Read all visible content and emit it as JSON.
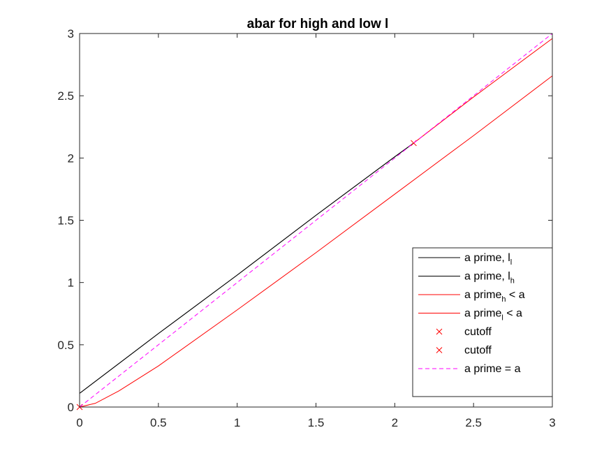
{
  "chart_data": {
    "type": "line",
    "title": "abar for high and low l",
    "xlabel": "",
    "ylabel": "",
    "xlim": [
      0,
      3
    ],
    "ylim": [
      0,
      3
    ],
    "xticks": [
      "0",
      "0.5",
      "1",
      "1.5",
      "2",
      "2.5",
      "3"
    ],
    "yticks": [
      "0",
      "0.5",
      "1",
      "1.5",
      "2",
      "2.5",
      "3"
    ],
    "grid": false,
    "legend_position": "bottom-right",
    "series": [
      {
        "name": "a prime, l_l",
        "legend": {
          "main": "a prime, l",
          "sub": "l",
          "suffix": ""
        },
        "color": "#000000",
        "style": "solid",
        "x": [
          0,
          0.5,
          1.0,
          1.5,
          2.0,
          2.12
        ],
        "y": [
          0.11,
          0.59,
          1.06,
          1.54,
          2.01,
          2.12
        ]
      },
      {
        "name": "a prime, l_h",
        "legend": {
          "main": "a prime, l",
          "sub": "h",
          "suffix": ""
        },
        "color": "#000000",
        "style": "solid",
        "x": [
          0,
          0.5,
          1.0,
          1.5,
          2.0,
          2.12
        ],
        "y": [
          0.11,
          0.59,
          1.06,
          1.54,
          2.01,
          2.12
        ]
      },
      {
        "name": "a prime_h < a",
        "legend": {
          "main": "a prime",
          "sub": "h",
          "suffix": " < a"
        },
        "color": "#ff0000",
        "style": "solid",
        "x": [
          2.12,
          2.5,
          3.0
        ],
        "y": [
          2.12,
          2.49,
          2.96
        ]
      },
      {
        "name": "a prime_l < a",
        "legend": {
          "main": "a prime",
          "sub": "l",
          "suffix": " < a"
        },
        "color": "#ff0000",
        "style": "solid",
        "x": [
          0,
          0.1,
          0.25,
          0.5,
          1.0,
          1.5,
          2.0,
          2.5,
          3.0
        ],
        "y": [
          0,
          0.03,
          0.13,
          0.33,
          0.78,
          1.24,
          1.71,
          2.18,
          2.66
        ]
      },
      {
        "name": "cutoff",
        "legend": {
          "main": "cutoff",
          "sub": "",
          "suffix": ""
        },
        "color": "#ff0000",
        "style": "marker-x",
        "x": [
          2.12
        ],
        "y": [
          2.12
        ]
      },
      {
        "name": "cutoff",
        "legend": {
          "main": "cutoff",
          "sub": "",
          "suffix": ""
        },
        "color": "#ff0000",
        "style": "marker-x",
        "x": [
          0
        ],
        "y": [
          0
        ]
      },
      {
        "name": "a prime = a",
        "legend": {
          "main": "a prime = a",
          "sub": "",
          "suffix": ""
        },
        "color": "#ff00ff",
        "style": "dashed",
        "x": [
          0,
          3
        ],
        "y": [
          0,
          3
        ]
      }
    ]
  }
}
